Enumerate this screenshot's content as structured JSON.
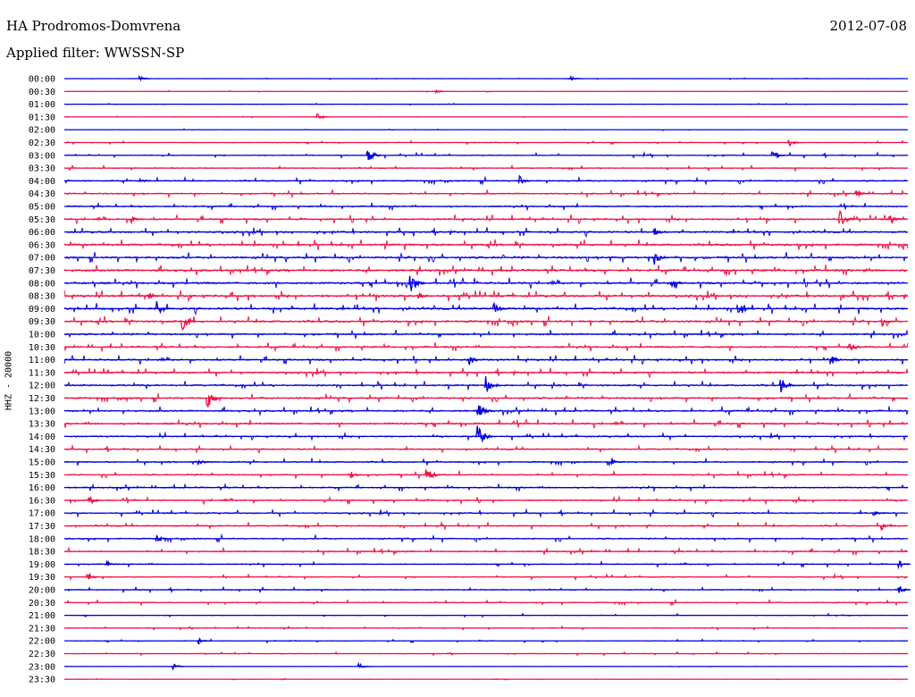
{
  "header": {
    "station": "HA Prodromos-Domvrena",
    "date": "2012-07-08",
    "filter": "Applied filter: WWSSN-SP"
  },
  "colors": {
    "series_a": "#0000dd",
    "series_b": "#ee1144"
  },
  "chart_data": {
    "type": "line",
    "title": "HA Prodromos-Domvrena",
    "subtitle": "Applied filter: WWSSN-SP",
    "ylabel": "HHZ - 20000",
    "xlabel": "",
    "grid": false,
    "legend": "none",
    "row_labels": [
      "00:00",
      "00:30",
      "01:00",
      "01:30",
      "02:00",
      "02:30",
      "03:00",
      "03:30",
      "04:00",
      "04:30",
      "05:00",
      "05:30",
      "06:00",
      "06:30",
      "07:00",
      "07:30",
      "08:00",
      "08:30",
      "09:00",
      "09:30",
      "10:00",
      "10:30",
      "11:00",
      "11:30",
      "12:00",
      "12:30",
      "13:00",
      "13:30",
      "14:00",
      "14:30",
      "15:00",
      "15:30",
      "16:00",
      "16:30",
      "17:00",
      "17:30",
      "18:00",
      "18:30",
      "19:00",
      "19:30",
      "20:00",
      "20:30",
      "21:00",
      "21:30",
      "22:00",
      "22:30",
      "23:00",
      "23:30"
    ],
    "row_activity": [
      1,
      1,
      1,
      1,
      1,
      2,
      3,
      3,
      4,
      4,
      4,
      5,
      5,
      6,
      6,
      6,
      6,
      6,
      6,
      6,
      5,
      5,
      5,
      5,
      5,
      5,
      5,
      5,
      4,
      4,
      4,
      4,
      4,
      4,
      4,
      4,
      4,
      4,
      3,
      3,
      3,
      3,
      2,
      2,
      2,
      2,
      1,
      1
    ],
    "events": [
      {
        "row": 0,
        "t": 0.09,
        "amp": 4
      },
      {
        "row": 0,
        "t": 0.6,
        "amp": 4
      },
      {
        "row": 1,
        "t": 0.44,
        "amp": 4
      },
      {
        "row": 3,
        "t": 0.3,
        "amp": 6
      },
      {
        "row": 5,
        "t": 0.86,
        "amp": 6
      },
      {
        "row": 6,
        "t": 0.36,
        "amp": 14
      },
      {
        "row": 6,
        "t": 0.84,
        "amp": 8
      },
      {
        "row": 8,
        "t": 0.09,
        "amp": 7
      },
      {
        "row": 8,
        "t": 0.54,
        "amp": 8
      },
      {
        "row": 9,
        "t": 0.94,
        "amp": 7
      },
      {
        "row": 11,
        "t": 0.08,
        "amp": 6
      },
      {
        "row": 11,
        "t": 0.92,
        "amp": 14
      },
      {
        "row": 11,
        "t": 0.98,
        "amp": 9
      },
      {
        "row": 12,
        "t": 0.7,
        "amp": 8
      },
      {
        "row": 14,
        "t": 0.7,
        "amp": 12
      },
      {
        "row": 16,
        "t": 0.41,
        "amp": 18
      },
      {
        "row": 16,
        "t": 0.72,
        "amp": 10
      },
      {
        "row": 17,
        "t": 0.42,
        "amp": 7
      },
      {
        "row": 17,
        "t": 0.1,
        "amp": 6
      },
      {
        "row": 18,
        "t": 0.11,
        "amp": 14
      },
      {
        "row": 18,
        "t": 0.51,
        "amp": 12
      },
      {
        "row": 18,
        "t": 0.8,
        "amp": 14
      },
      {
        "row": 19,
        "t": 0.14,
        "amp": 14
      },
      {
        "row": 19,
        "t": 0.97,
        "amp": 8
      },
      {
        "row": 21,
        "t": 0.93,
        "amp": 8
      },
      {
        "row": 22,
        "t": 0.48,
        "amp": 10
      },
      {
        "row": 22,
        "t": 0.91,
        "amp": 9
      },
      {
        "row": 24,
        "t": 0.5,
        "amp": 14
      },
      {
        "row": 24,
        "t": 0.85,
        "amp": 14
      },
      {
        "row": 25,
        "t": 0.17,
        "amp": 16
      },
      {
        "row": 26,
        "t": 0.49,
        "amp": 16
      },
      {
        "row": 28,
        "t": 0.49,
        "amp": 18
      },
      {
        "row": 30,
        "t": 0.16,
        "amp": 6
      },
      {
        "row": 30,
        "t": 0.65,
        "amp": 5
      },
      {
        "row": 31,
        "t": 0.43,
        "amp": 14
      },
      {
        "row": 31,
        "t": 0.34,
        "amp": 6
      },
      {
        "row": 33,
        "t": 0.03,
        "amp": 9
      },
      {
        "row": 34,
        "t": 0.96,
        "amp": 6
      },
      {
        "row": 35,
        "t": 0.97,
        "amp": 8
      },
      {
        "row": 36,
        "t": 0.11,
        "amp": 6
      },
      {
        "row": 38,
        "t": 0.05,
        "amp": 5
      },
      {
        "row": 38,
        "t": 0.99,
        "amp": 6
      },
      {
        "row": 39,
        "t": 0.03,
        "amp": 5
      },
      {
        "row": 40,
        "t": 0.99,
        "amp": 7
      },
      {
        "row": 44,
        "t": 0.16,
        "amp": 5
      },
      {
        "row": 46,
        "t": 0.13,
        "amp": 5
      },
      {
        "row": 46,
        "t": 0.35,
        "amp": 5
      }
    ]
  }
}
